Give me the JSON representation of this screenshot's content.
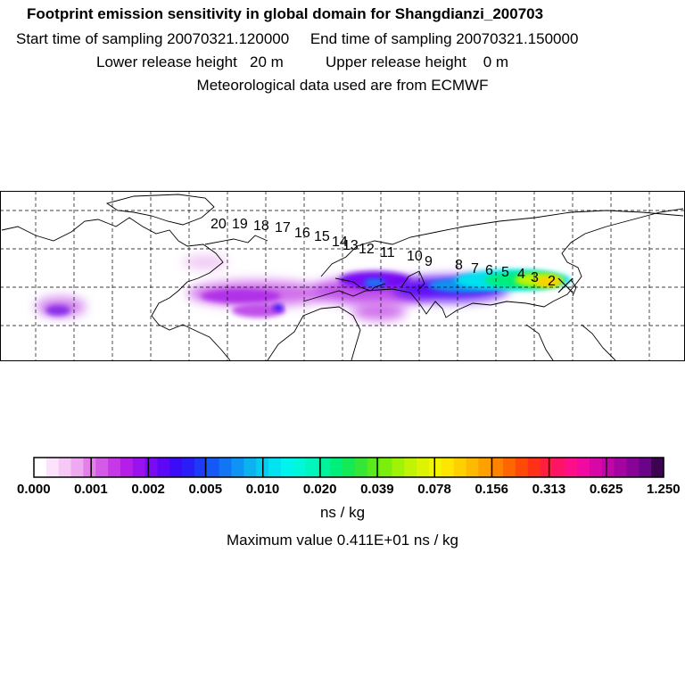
{
  "header": {
    "title": "Footprint emission sensitivity in global domain for Shangdianzi_200703",
    "start_time": "Start time of sampling 20070321.120000",
    "end_time": "End time of sampling 20070321.150000",
    "lower_release": "Lower release height   20 m",
    "upper_release": "Upper release height    0 m",
    "met_data": "Meteorological data used are from ECMWF"
  },
  "map": {
    "trajectory_labels": [
      "2",
      "3",
      "4",
      "5",
      "6",
      "7",
      "8",
      "9",
      "10",
      "11",
      "12",
      "13",
      "14",
      "15",
      "16",
      "17",
      "18",
      "19",
      "20"
    ],
    "receptor_marker": "Shangdianzi"
  },
  "colorbar": {
    "ticks": [
      "0.000",
      "0.001",
      "0.002",
      "0.005",
      "0.010",
      "0.020",
      "0.039",
      "0.078",
      "0.156",
      "0.313",
      "0.625",
      "1.250"
    ],
    "colors": [
      "#ffffff",
      "#fbe4fb",
      "#f6c8f6",
      "#eeaaf0",
      "#e57fea",
      "#d45ae8",
      "#c53ae6",
      "#b51ee8",
      "#9a12ee",
      "#7a0cf4",
      "#5c08f6",
      "#3c0cf8",
      "#2a1ef8",
      "#1e3af8",
      "#1658f6",
      "#1276f4",
      "#0e94f2",
      "#0ab2f0",
      "#06ccf0",
      "#02e2f0",
      "#00f4ec",
      "#00f8d8",
      "#00f6bc",
      "#00f29c",
      "#00ee7a",
      "#12ea56",
      "#34e636",
      "#58ea1c",
      "#7cee0c",
      "#a0f206",
      "#c0f404",
      "#dcf402",
      "#f2f400",
      "#fee600",
      "#fed000",
      "#feba00",
      "#fea000",
      "#fe8400",
      "#fe6600",
      "#fe4a08",
      "#fe3018",
      "#fe1e40",
      "#fe1466",
      "#fe0e88",
      "#f00aa0",
      "#d808a8",
      "#c006a8",
      "#a404a0",
      "#880496",
      "#6a0488",
      "#3c0450"
    ],
    "unit": "ns / kg",
    "max_value": "Maximum value  0.411E+01 ns / kg"
  }
}
